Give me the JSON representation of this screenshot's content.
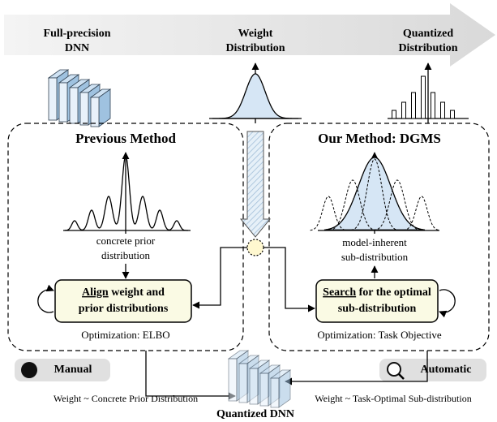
{
  "stages": [
    {
      "lines": [
        "Full-precision",
        "DNN"
      ]
    },
    {
      "lines": [
        "Weight",
        "Distribution"
      ]
    },
    {
      "lines": [
        "Quantized",
        "Distribution"
      ]
    }
  ],
  "previous_method": {
    "title": "Previous Method",
    "prior_label": [
      "concrete prior",
      "distribution"
    ],
    "box": {
      "emphasis": "Align",
      "rest": "weight and",
      "line2": "prior distributions"
    },
    "optimization": "Optimization: ELBO",
    "badge": "Manual",
    "caption": "Weight ~ Concrete Prior Distribution"
  },
  "our_method": {
    "title": "Our Method: DGMS",
    "prior_label": [
      "model-inherent",
      "sub-distribution"
    ],
    "box": {
      "emphasis": "Search",
      "rest": "for the optimal",
      "line2": "sub-distribution"
    },
    "optimization": "Optimization: Task Objective",
    "badge": "Automatic",
    "caption": "Weight ~ Task-Optimal Sub-distribution"
  },
  "output": "Quantized DNN"
}
